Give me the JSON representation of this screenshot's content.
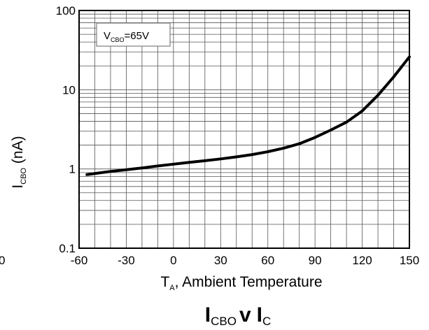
{
  "chart_data": {
    "type": "line",
    "title": {
      "main": "I",
      "sub": "CBO",
      "mid": "v",
      "main2": "I",
      "sub2": "C"
    },
    "xlabel": {
      "main": "T",
      "sub": "A",
      "rest": ", Ambient Temperature"
    },
    "ylabel": {
      "main": "I",
      "sub": "CBO",
      "rest": "  (nA)"
    },
    "annotation": {
      "main": "V",
      "sub": "CBO",
      "rest": "=65V"
    },
    "stray_label": "0",
    "xlim": [
      -60,
      150
    ],
    "ylim": [
      0.1,
      100
    ],
    "yscale": "log",
    "grid": true,
    "x_ticks": [
      -60,
      -30,
      0,
      30,
      60,
      90,
      120,
      150
    ],
    "y_ticks": [
      0.1,
      1,
      10,
      100
    ],
    "y_tick_labels": [
      "0.1",
      "1",
      "10",
      "100"
    ],
    "series": [
      {
        "x": [
          -55,
          -40,
          -30,
          -20,
          -10,
          0,
          10,
          20,
          30,
          40,
          50,
          60,
          70,
          80,
          90,
          100,
          110,
          120,
          130,
          140,
          150
        ],
        "y": [
          0.85,
          0.93,
          0.98,
          1.03,
          1.09,
          1.15,
          1.21,
          1.27,
          1.34,
          1.42,
          1.52,
          1.65,
          1.83,
          2.08,
          2.5,
          3.1,
          3.9,
          5.4,
          8.5,
          14.5,
          26
        ]
      }
    ]
  }
}
